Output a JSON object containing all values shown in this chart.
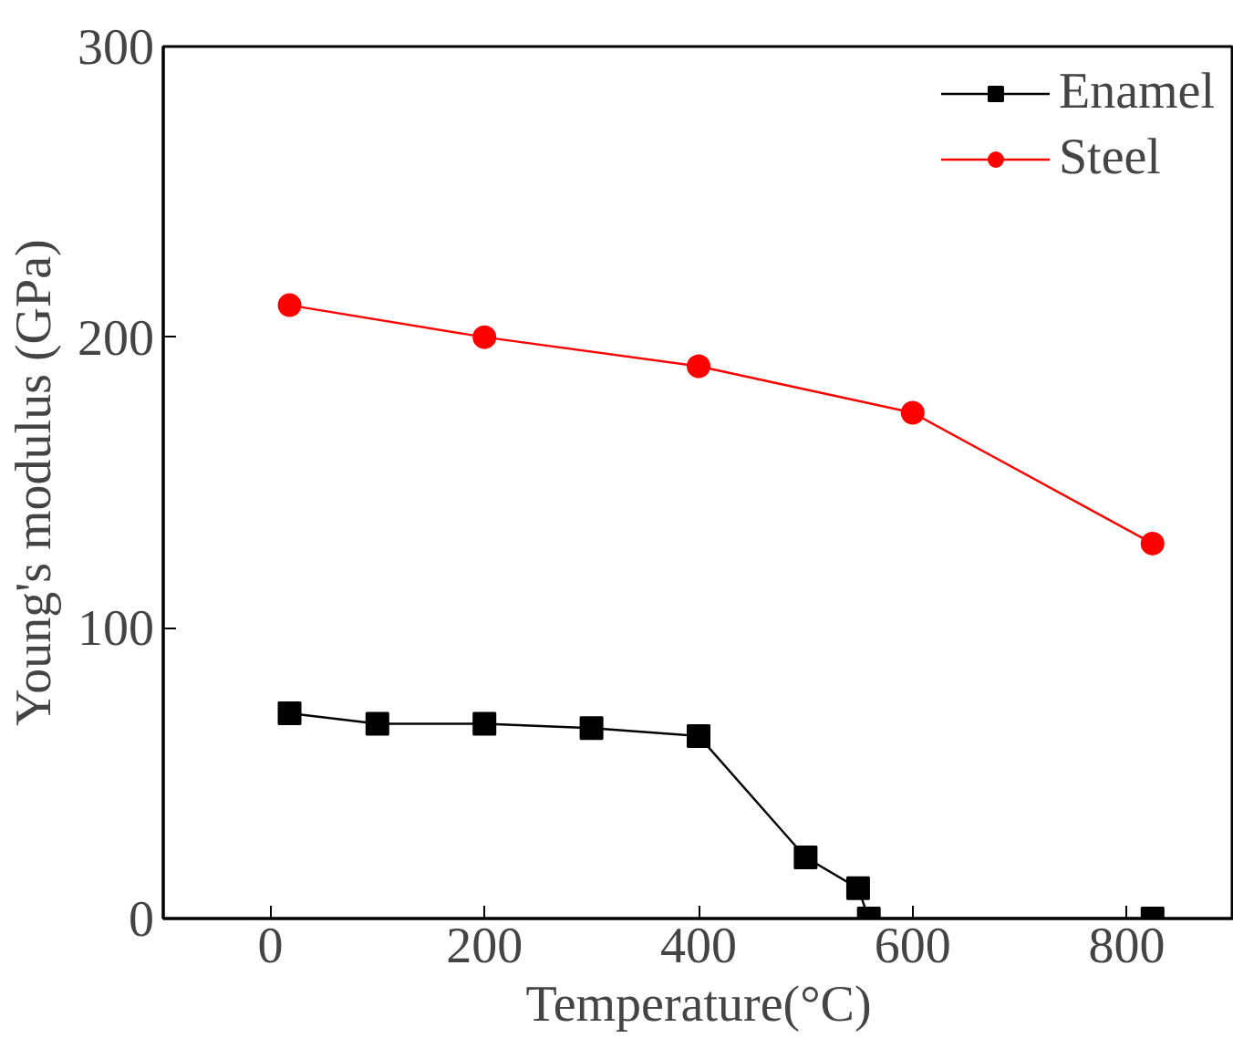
{
  "chart_data": {
    "type": "line",
    "xlabel": "Temperature(°C)",
    "ylabel": "Young's modulus (GPa)",
    "xlim": [
      -100,
      900
    ],
    "ylim": [
      0,
      300
    ],
    "xticks": [
      0,
      200,
      400,
      600,
      800
    ],
    "yticks": [
      0,
      100,
      200,
      300
    ],
    "grid": false,
    "legend": "top right",
    "line_style": "solid",
    "series": [
      {
        "name": "Enamel",
        "color": "#000000",
        "marker": "square",
        "x": [
          18,
          100,
          200,
          300,
          400,
          500,
          549,
          559,
          824
        ],
        "values": [
          70.6,
          67,
          67,
          65.5,
          62.8,
          21,
          10.4,
          0,
          0
        ]
      },
      {
        "name": "Steel",
        "color": "#ff0000",
        "marker": "circle",
        "x": [
          18,
          200,
          400,
          600,
          824
        ],
        "values": [
          211,
          200,
          190,
          174,
          129
        ]
      }
    ]
  }
}
